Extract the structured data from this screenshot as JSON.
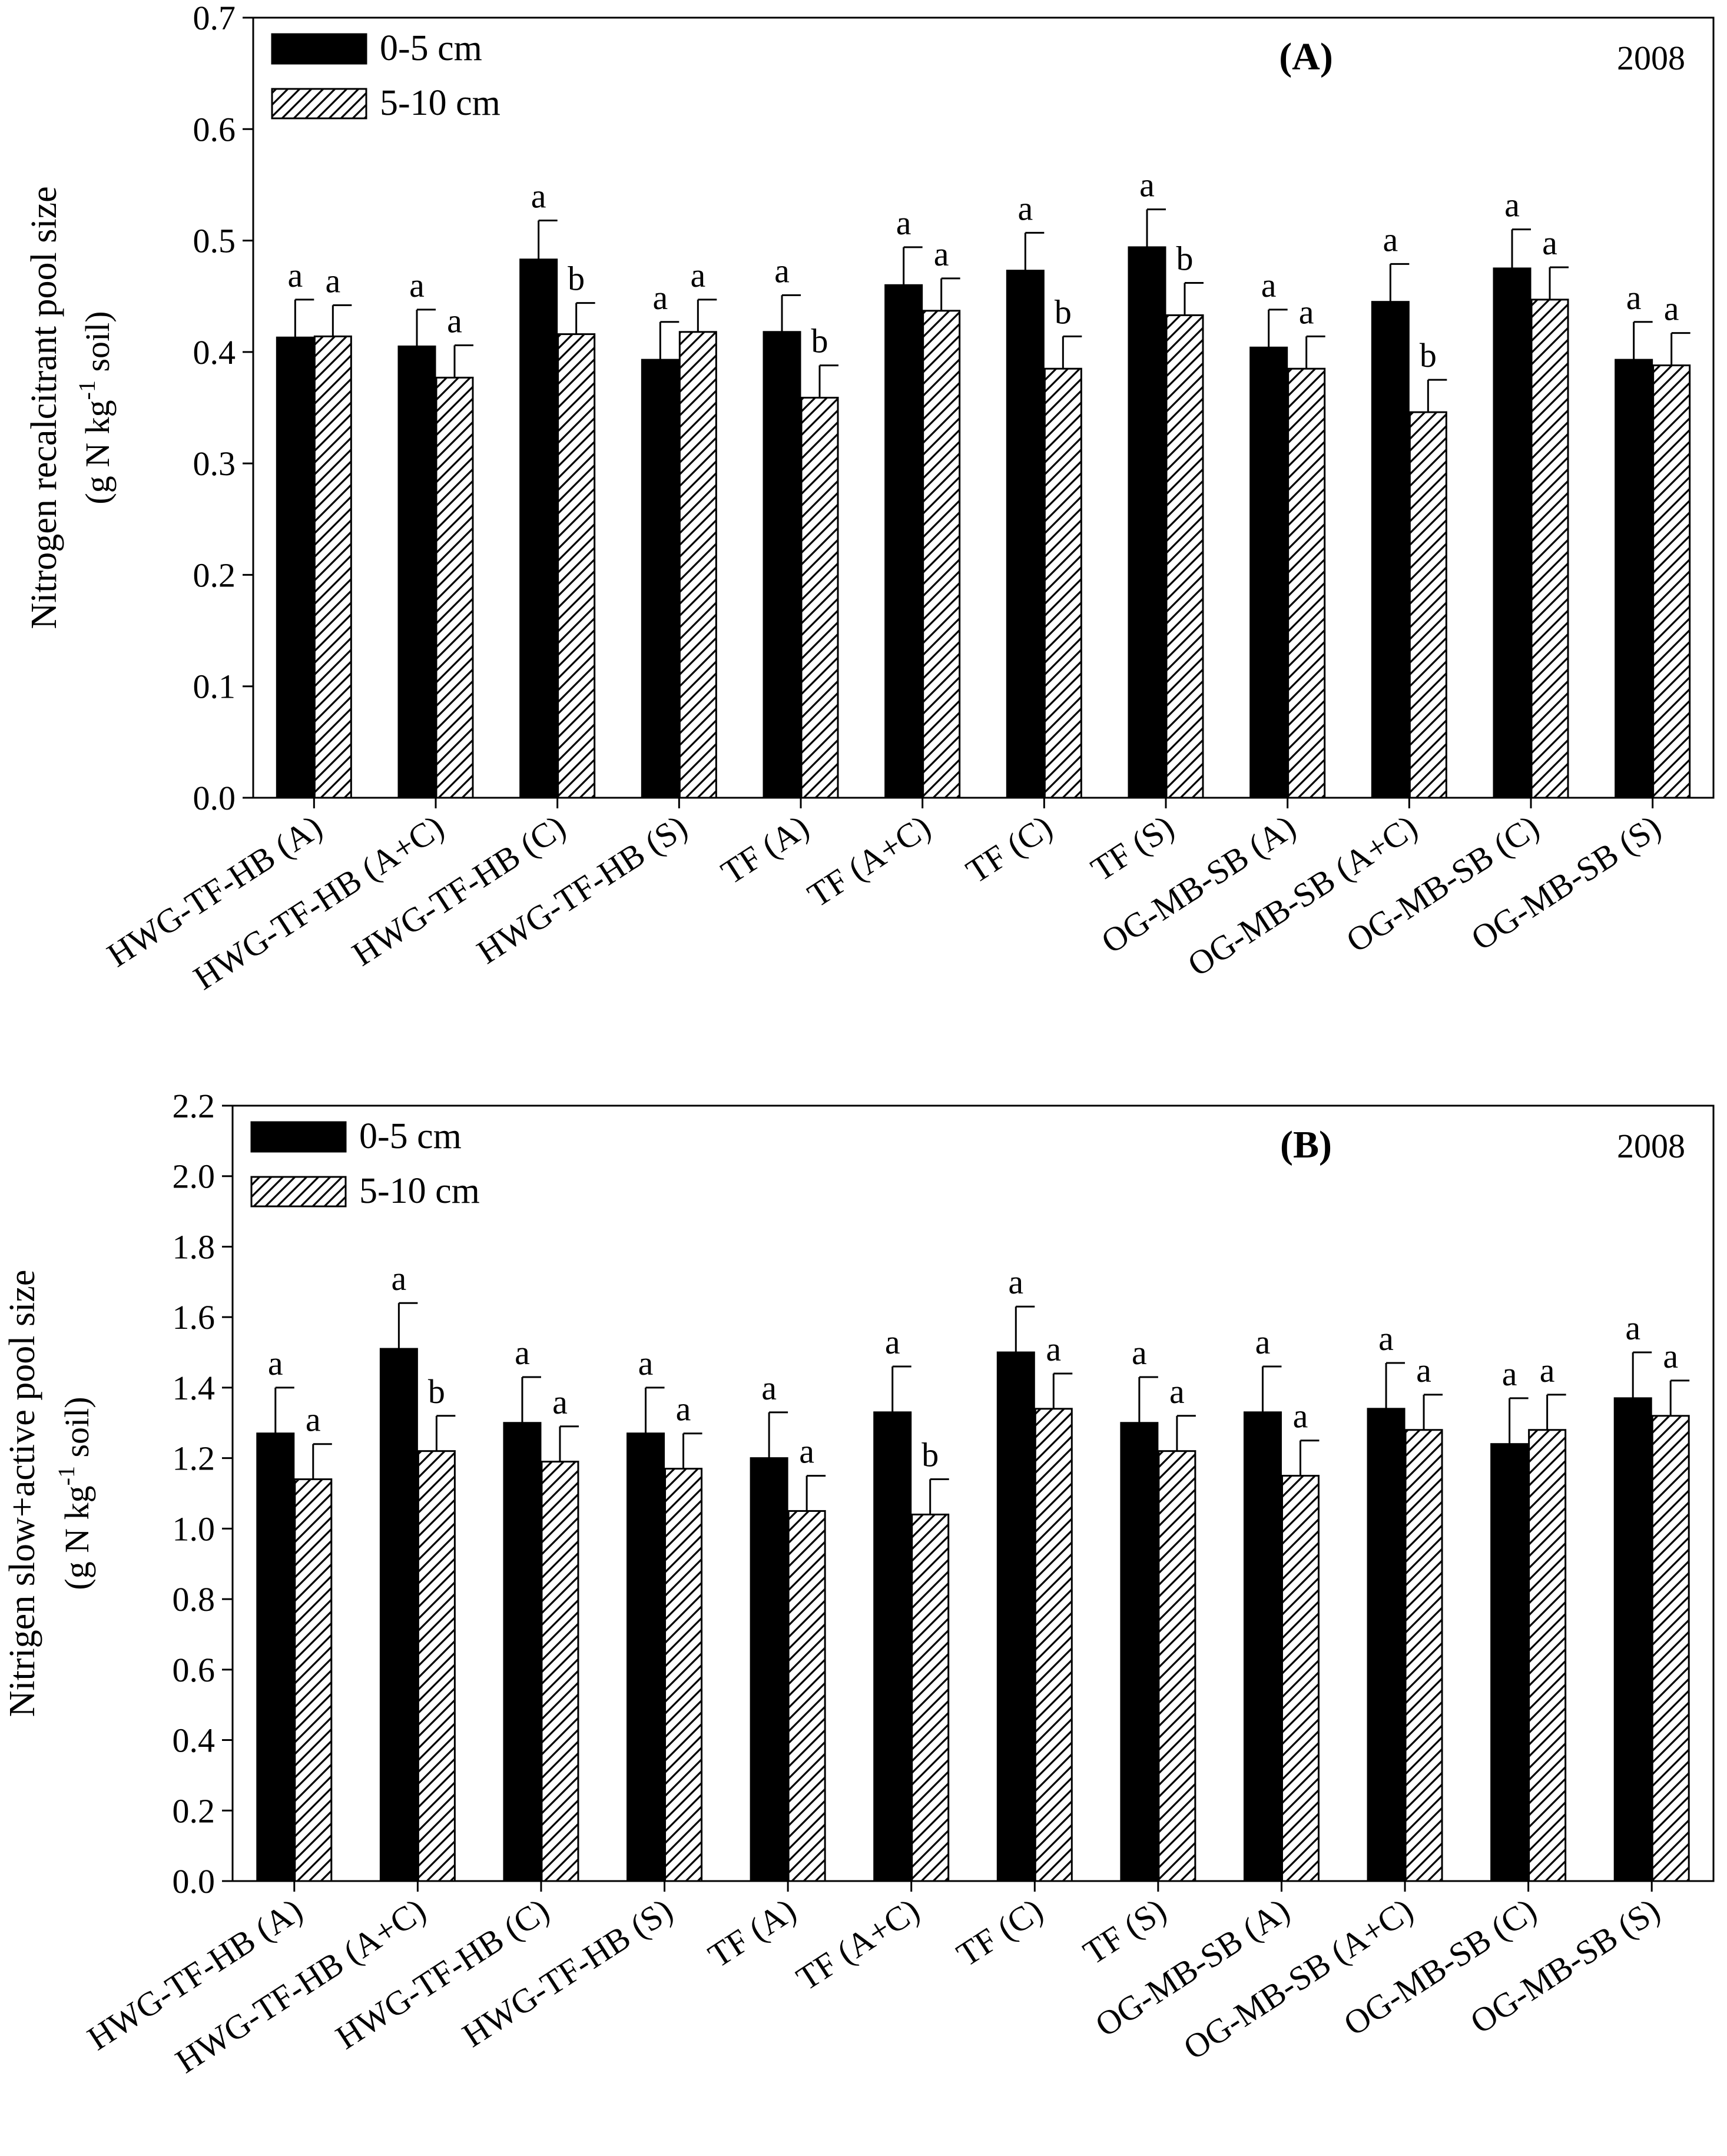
{
  "chart_data": [
    {
      "type": "bar",
      "panel_label": "(A)",
      "year": "2008",
      "title": "",
      "ylabel_line1": "Nitrogen recalcitrant pool size",
      "ylabel_line2": "(g N kg",
      "ylabel_sup": "-1",
      "ylabel_line2_tail": " soil)",
      "xlabel": "",
      "ylim": [
        0,
        0.7
      ],
      "yticks": [
        0.0,
        0.1,
        0.2,
        0.3,
        0.4,
        0.5,
        0.6,
        0.7
      ],
      "ytick_labels": [
        "0.0",
        "0.1",
        "0.2",
        "0.3",
        "0.4",
        "0.5",
        "0.6",
        "0.7"
      ],
      "legend_position": "top-left",
      "categories": [
        "HWG-TF-HB (A)",
        "HWG-TF-HB (A+C)",
        "HWG-TF-HB (C)",
        "HWG-TF-HB (S)",
        "TF (A)",
        "TF (A+C)",
        "TF (C)",
        "TF (S)",
        "OG-MB-SB (A)",
        "OG-MB-SB (A+C)",
        "OG-MB-SB (C)",
        "OG-MB-SB (S)"
      ],
      "series": [
        {
          "name": "0-5 cm",
          "fill": "solid",
          "values": [
            0.413,
            0.405,
            0.483,
            0.393,
            0.418,
            0.46,
            0.473,
            0.494,
            0.404,
            0.445,
            0.475,
            0.393
          ],
          "errors": [
            0.034,
            0.033,
            0.035,
            0.034,
            0.033,
            0.034,
            0.034,
            0.034,
            0.034,
            0.034,
            0.035,
            0.034
          ],
          "letters": [
            "a",
            "a",
            "a",
            "a",
            "a",
            "a",
            "a",
            "a",
            "a",
            "a",
            "a",
            "a"
          ]
        },
        {
          "name": "5-10 cm",
          "fill": "hatched",
          "values": [
            0.414,
            0.377,
            0.416,
            0.418,
            0.359,
            0.437,
            0.385,
            0.433,
            0.385,
            0.346,
            0.447,
            0.388
          ],
          "errors": [
            0.028,
            0.029,
            0.028,
            0.029,
            0.029,
            0.029,
            0.029,
            0.029,
            0.029,
            0.029,
            0.029,
            0.029
          ],
          "letters": [
            "a",
            "a",
            "b",
            "a",
            "b",
            "a",
            "b",
            "b",
            "a",
            "b",
            "a",
            "a"
          ]
        }
      ]
    },
    {
      "type": "bar",
      "panel_label": "(B)",
      "year": "2008",
      "title": "",
      "ylabel_line1": "Nitrigen slow+active pool size",
      "ylabel_line2": "(g N kg",
      "ylabel_sup": "-1",
      "ylabel_line2_tail": " soil)",
      "xlabel": "",
      "ylim": [
        0,
        2.2
      ],
      "yticks": [
        0.0,
        0.2,
        0.4,
        0.6,
        0.8,
        1.0,
        1.2,
        1.4,
        1.6,
        1.8,
        2.0,
        2.2
      ],
      "ytick_labels": [
        "0.0",
        "0.2",
        "0.4",
        "0.6",
        "0.8",
        "1.0",
        "1.2",
        "1.4",
        "1.6",
        "1.8",
        "2.0",
        "2.2"
      ],
      "legend_position": "top-left",
      "categories": [
        "HWG-TF-HB (A)",
        "HWG-TF-HB (A+C)",
        "HWG-TF-HB (C)",
        "HWG-TF-HB (S)",
        "TF (A)",
        "TF (A+C)",
        "TF (C)",
        "TF (S)",
        "OG-MB-SB (A)",
        "OG-MB-SB (A+C)",
        "OG-MB-SB (C)",
        "OG-MB-SB (S)"
      ],
      "series": [
        {
          "name": "0-5 cm",
          "fill": "solid",
          "values": [
            1.27,
            1.51,
            1.3,
            1.27,
            1.2,
            1.33,
            1.5,
            1.3,
            1.33,
            1.34,
            1.24,
            1.37
          ],
          "errors": [
            0.13,
            0.13,
            0.13,
            0.13,
            0.13,
            0.13,
            0.13,
            0.13,
            0.13,
            0.13,
            0.13,
            0.13
          ],
          "letters": [
            "a",
            "a",
            "a",
            "a",
            "a",
            "a",
            "a",
            "a",
            "a",
            "a",
            "a",
            "a"
          ]
        },
        {
          "name": "5-10 cm",
          "fill": "hatched",
          "values": [
            1.14,
            1.22,
            1.19,
            1.17,
            1.05,
            1.04,
            1.34,
            1.22,
            1.15,
            1.28,
            1.28,
            1.32
          ],
          "errors": [
            0.1,
            0.1,
            0.1,
            0.1,
            0.1,
            0.1,
            0.1,
            0.1,
            0.1,
            0.1,
            0.1,
            0.1
          ],
          "letters": [
            "a",
            "b",
            "a",
            "a",
            "a",
            "b",
            "a",
            "a",
            "a",
            "a",
            "a",
            "a"
          ]
        }
      ]
    }
  ]
}
